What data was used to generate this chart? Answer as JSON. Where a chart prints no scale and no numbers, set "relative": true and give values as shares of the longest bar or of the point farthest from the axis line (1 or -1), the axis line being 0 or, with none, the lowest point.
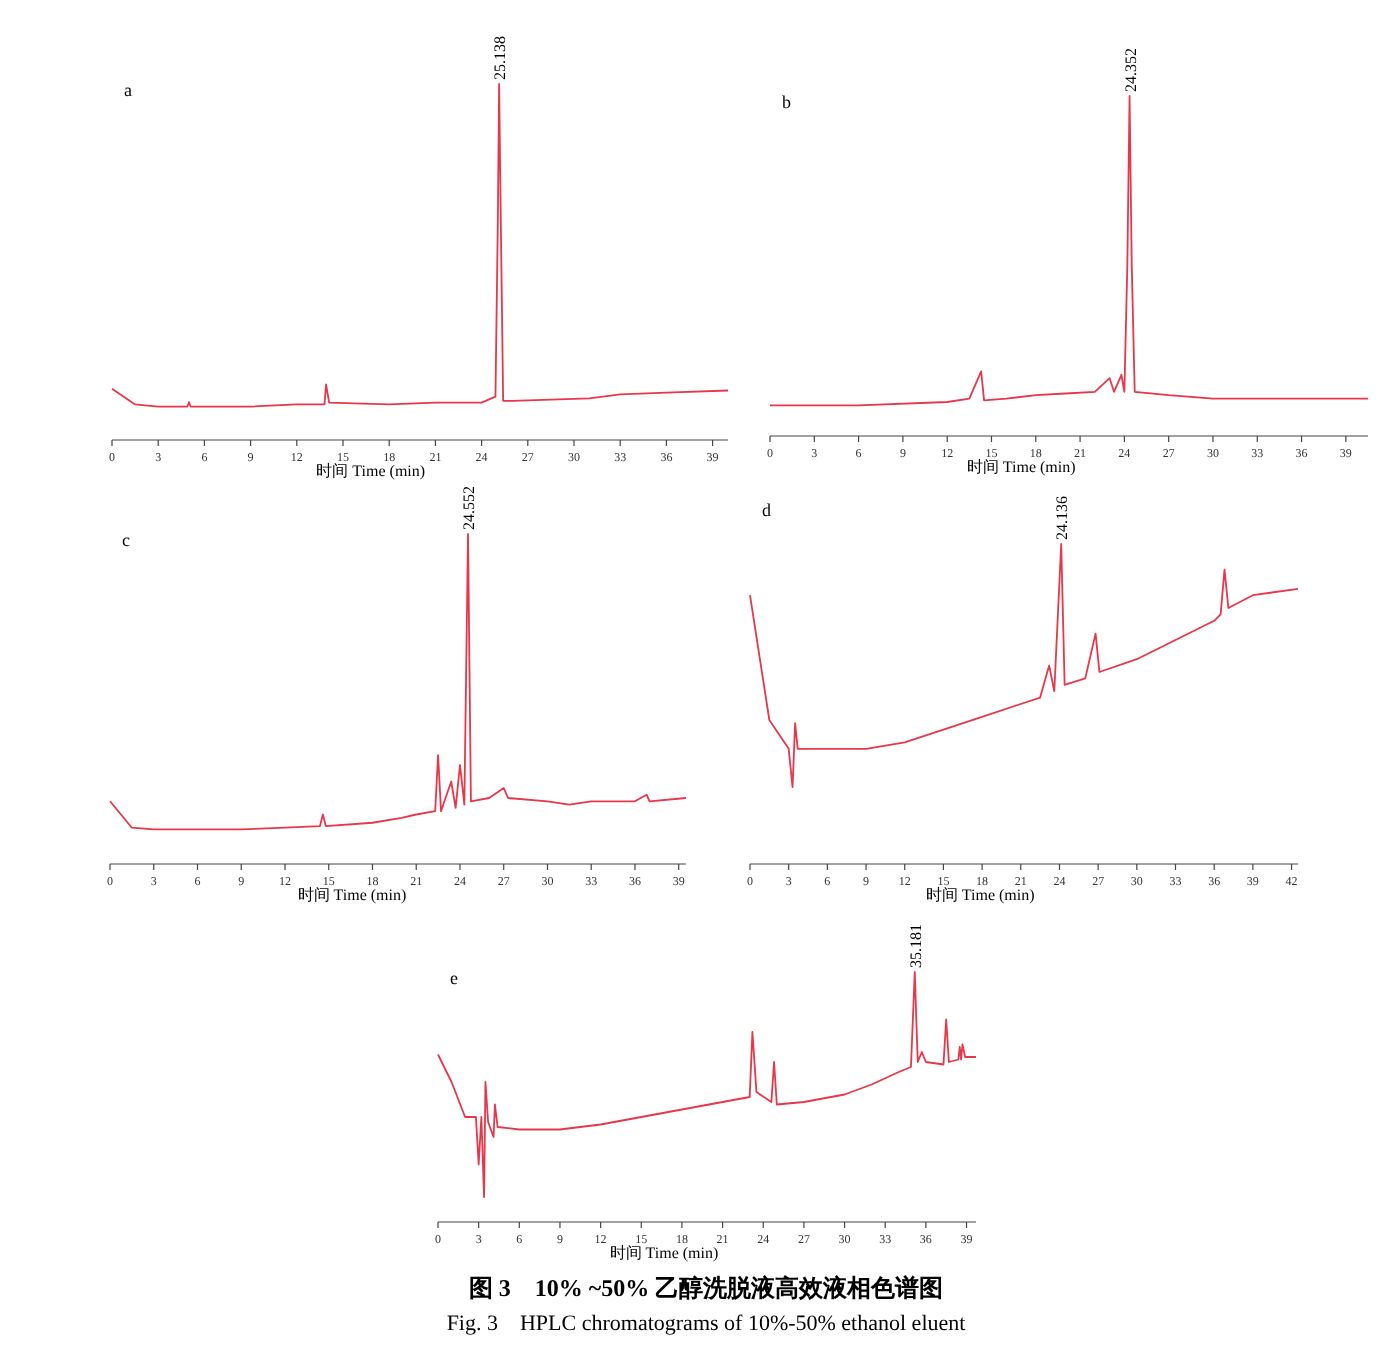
{
  "chart_data": [
    {
      "type": "line",
      "title": "a",
      "xlabel": "时间 Time (min)",
      "relative": true,
      "xlim": [
        0,
        40
      ],
      "xticks": [
        0,
        3,
        6,
        9,
        12,
        15,
        18,
        21,
        24,
        27,
        30,
        33,
        36,
        39
      ],
      "grid": false,
      "marker": "none",
      "line_style": "solid",
      "annotations": [
        {
          "text": "25.138",
          "x": 25.138,
          "y": 1
        }
      ],
      "series": [
        {
          "color": "#e8374a",
          "x": [
            0,
            1.5,
            3,
            4.9,
            5,
            5.1,
            9,
            12,
            13.8,
            13.9,
            14.1,
            18,
            21,
            24,
            24.9,
            25.05,
            25.138,
            25.25,
            25.4,
            26,
            31,
            33,
            36,
            40
          ],
          "values": [
            0.144,
            0.1,
            0.094,
            0.094,
            0.106,
            0.094,
            0.094,
            0.1,
            0.1,
            0.156,
            0.105,
            0.1,
            0.105,
            0.105,
            0.122,
            0.6,
            1,
            0.6,
            0.11,
            0.11,
            0.117,
            0.128,
            0.133,
            0.139
          ]
        }
      ]
    },
    {
      "type": "line",
      "title": "b",
      "xlabel": "时间 Time (min)",
      "relative": true,
      "xlim": [
        0,
        40.5
      ],
      "xticks": [
        0,
        3,
        6,
        9,
        12,
        15,
        18,
        21,
        24,
        27,
        30,
        33,
        36,
        39
      ],
      "grid": false,
      "marker": "none",
      "line_style": "solid",
      "annotations": [
        {
          "text": "24.352",
          "x": 24.352,
          "y": 1
        }
      ],
      "series": [
        {
          "color": "#e8374a",
          "x": [
            0,
            6,
            12,
            13.5,
            14.3,
            14.5,
            16,
            18,
            20,
            22,
            23,
            23.3,
            23.8,
            24,
            24.2,
            24.352,
            24.5,
            24.7,
            27,
            30,
            33,
            36,
            40.5
          ],
          "values": [
            0.09,
            0.09,
            0.1,
            0.11,
            0.19,
            0.105,
            0.11,
            0.12,
            0.125,
            0.13,
            0.17,
            0.13,
            0.18,
            0.13,
            0.5,
            1,
            0.5,
            0.13,
            0.12,
            0.11,
            0.11,
            0.11,
            0.11
          ]
        }
      ]
    },
    {
      "type": "line",
      "title": "c",
      "xlabel": "时间 Time (min)",
      "relative": true,
      "xlim": [
        0,
        39.5
      ],
      "xticks": [
        0,
        3,
        6,
        9,
        12,
        15,
        18,
        21,
        24,
        27,
        30,
        33,
        36,
        39
      ],
      "grid": false,
      "marker": "none",
      "line_style": "solid",
      "annotations": [
        {
          "text": "24.552",
          "x": 24.552,
          "y": 1
        }
      ],
      "series": [
        {
          "color": "#e8374a",
          "x": [
            0,
            1.5,
            3,
            9,
            12,
            14.4,
            14.6,
            14.8,
            18,
            20,
            21,
            22.3,
            22.5,
            22.7,
            23.4,
            23.7,
            24,
            24.3,
            24.552,
            24.75,
            26,
            27,
            27.3,
            30,
            31.5,
            33,
            36,
            36.8,
            37,
            39.5
          ],
          "values": [
            0.19,
            0.11,
            0.105,
            0.105,
            0.11,
            0.115,
            0.15,
            0.115,
            0.125,
            0.14,
            0.15,
            0.16,
            0.33,
            0.16,
            0.25,
            0.17,
            0.3,
            0.18,
            1,
            0.19,
            0.2,
            0.23,
            0.2,
            0.19,
            0.18,
            0.19,
            0.19,
            0.21,
            0.19,
            0.2
          ]
        }
      ]
    },
    {
      "type": "line",
      "title": "d",
      "xlabel": "时间 Time (min)",
      "relative": true,
      "xlim": [
        0,
        42.5
      ],
      "xticks": [
        0,
        3,
        6,
        9,
        12,
        15,
        18,
        21,
        24,
        27,
        30,
        33,
        36,
        39,
        42
      ],
      "grid": false,
      "marker": "none",
      "line_style": "solid",
      "annotations": [
        {
          "text": "24.136",
          "x": 24.136,
          "y": 1
        }
      ],
      "series": [
        {
          "color": "#e8374a",
          "x": [
            0,
            1.5,
            3,
            3.3,
            3.5,
            3.7,
            6,
            9,
            12,
            15,
            18,
            21,
            22.5,
            23.2,
            23.6,
            24.136,
            24.4,
            26,
            26.8,
            27.1,
            30,
            33,
            36,
            36.5,
            36.8,
            37.1,
            39,
            42.5
          ],
          "values": [
            0.84,
            0.45,
            0.36,
            0.24,
            0.44,
            0.36,
            0.36,
            0.36,
            0.38,
            0.42,
            0.46,
            0.5,
            0.52,
            0.62,
            0.54,
            1,
            0.56,
            0.58,
            0.72,
            0.6,
            0.64,
            0.7,
            0.76,
            0.78,
            0.92,
            0.8,
            0.84,
            0.86
          ]
        }
      ]
    },
    {
      "type": "line",
      "title": "e",
      "xlabel": "时间 Time (min)",
      "relative": true,
      "xlim": [
        0,
        39.7
      ],
      "xticks": [
        0,
        3,
        6,
        9,
        12,
        15,
        18,
        21,
        24,
        27,
        30,
        33,
        36,
        39
      ],
      "grid": false,
      "marker": "none",
      "line_style": "solid",
      "annotations": [
        {
          "text": "35.181",
          "x": 35.181,
          "y": 1
        },
        "图 3　10% ~50% 乙醇洗脱液高效液相色谱图",
        "Fig. 3　HPLC chromatograms of 10%-50% ethanol eluent"
      ],
      "series": [
        {
          "color": "#e8374a",
          "x": [
            0,
            1,
            2,
            2.8,
            3,
            3.2,
            3.4,
            3.5,
            3.7,
            4.1,
            4.2,
            4.4,
            6,
            9,
            12,
            15,
            18,
            21,
            23,
            23.2,
            23.5,
            24.6,
            24.8,
            25,
            27,
            30,
            32,
            34,
            34.9,
            35.181,
            35.4,
            35.7,
            36,
            37.3,
            37.5,
            37.7,
            38.4,
            38.5,
            38.6,
            38.7,
            38.9,
            39.7
          ],
          "values": [
            0.67,
            0.56,
            0.42,
            0.42,
            0.23,
            0.42,
            0.1,
            0.56,
            0.4,
            0.34,
            0.47,
            0.38,
            0.37,
            0.37,
            0.39,
            0.42,
            0.45,
            0.48,
            0.5,
            0.76,
            0.52,
            0.48,
            0.64,
            0.47,
            0.48,
            0.51,
            0.55,
            0.6,
            0.62,
            1,
            0.64,
            0.68,
            0.64,
            0.63,
            0.81,
            0.64,
            0.65,
            0.7,
            0.65,
            0.71,
            0.66,
            0.66
          ]
        }
      ]
    }
  ]
}
